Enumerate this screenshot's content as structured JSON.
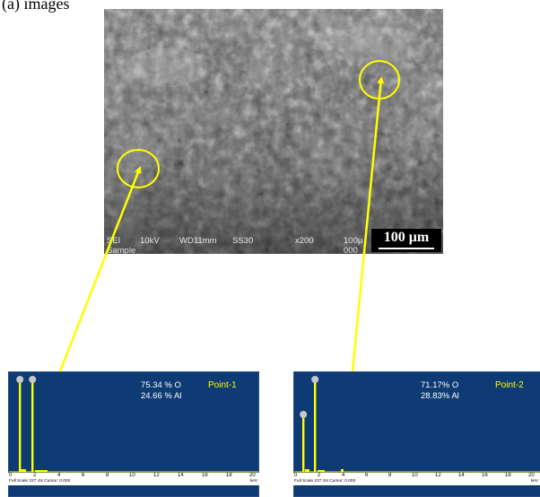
{
  "caption": "(a) images",
  "sem": {
    "detector": "SEI",
    "voltage": "10kV",
    "working_distance": "WD11mm",
    "spot_size": "SS30",
    "magnification": "x200",
    "scale_label_small": "100μ",
    "sample_label": "Sample",
    "image_number": "000",
    "scale_bar": "100 μm"
  },
  "spectra": [
    {
      "name": "Point-1",
      "oxygen": "75.34 % O",
      "aluminum": "24.66 % Al",
      "footer": "Full Scale 237 cts Cursor: 0.000",
      "unit": "keV",
      "ticks": [
        "0",
        "2",
        "4",
        "6",
        "8",
        "10",
        "12",
        "14",
        "16",
        "18",
        "20"
      ]
    },
    {
      "name": "Point-2",
      "oxygen": "71.17% O",
      "aluminum": "28.83% Al",
      "footer": "Full Scale 237 cts Cursor: 0.000",
      "unit": "keV",
      "ticks": [
        "0",
        "2",
        "4",
        "6",
        "8",
        "10",
        "12",
        "14",
        "16",
        "18",
        "20"
      ]
    }
  ],
  "colors": {
    "spectrum_bg": "#0e3b73",
    "peak": "#ffff00",
    "annotation": "#ffff00",
    "label": "#ffff00"
  }
}
